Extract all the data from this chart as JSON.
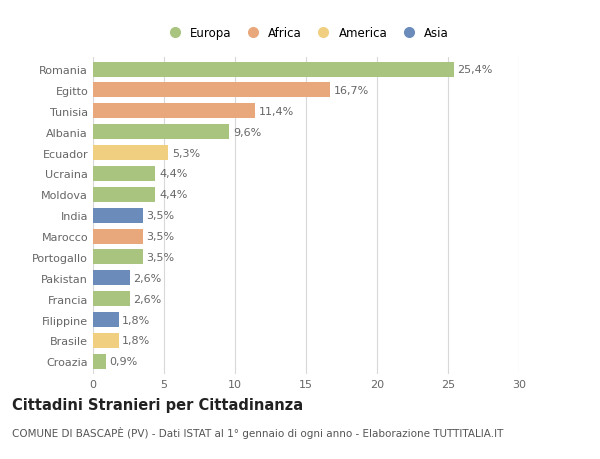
{
  "countries": [
    "Romania",
    "Egitto",
    "Tunisia",
    "Albania",
    "Ecuador",
    "Ucraina",
    "Moldova",
    "India",
    "Marocco",
    "Portogallo",
    "Pakistan",
    "Francia",
    "Filippine",
    "Brasile",
    "Croazia"
  ],
  "values": [
    25.4,
    16.7,
    11.4,
    9.6,
    5.3,
    4.4,
    4.4,
    3.5,
    3.5,
    3.5,
    2.6,
    2.6,
    1.8,
    1.8,
    0.9
  ],
  "labels": [
    "25,4%",
    "16,7%",
    "11,4%",
    "9,6%",
    "5,3%",
    "4,4%",
    "4,4%",
    "3,5%",
    "3,5%",
    "3,5%",
    "2,6%",
    "2,6%",
    "1,8%",
    "1,8%",
    "0,9%"
  ],
  "colors": [
    "#a8c47e",
    "#e8a87c",
    "#e8a87c",
    "#a8c47e",
    "#f0d080",
    "#a8c47e",
    "#a8c47e",
    "#6b8cba",
    "#e8a87c",
    "#a8c47e",
    "#6b8cba",
    "#a8c47e",
    "#6b8cba",
    "#f0d080",
    "#a8c47e"
  ],
  "continent_labels": [
    "Europa",
    "Africa",
    "America",
    "Asia"
  ],
  "continent_colors": [
    "#a8c47e",
    "#e8a87c",
    "#f0d080",
    "#6b8cba"
  ],
  "xlim": [
    0,
    30
  ],
  "xticks": [
    0,
    5,
    10,
    15,
    20,
    25,
    30
  ],
  "title": "Cittadini Stranieri per Cittadinanza",
  "subtitle": "COMUNE DI BASCAPÈ (PV) - Dati ISTAT al 1° gennaio di ogni anno - Elaborazione TUTTITALIA.IT",
  "bg_color": "#ffffff",
  "grid_color": "#d8d8d8",
  "bar_height": 0.72,
  "label_fontsize": 8.0,
  "tick_fontsize": 8.0,
  "title_fontsize": 10.5,
  "subtitle_fontsize": 7.5,
  "legend_fontsize": 8.5
}
